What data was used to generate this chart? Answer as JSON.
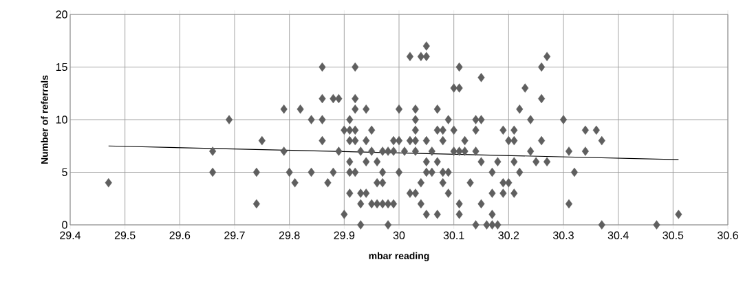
{
  "chart_data": {
    "type": "scatter",
    "xlabel": "mbar reading",
    "ylabel": "Number of referrals",
    "xlim": [
      29.4,
      30.6
    ],
    "ylim": [
      0,
      20
    ],
    "xticks": [
      29.4,
      29.5,
      29.6,
      29.7,
      29.8,
      29.9,
      30,
      30.1,
      30.2,
      30.3,
      30.4,
      30.5,
      30.6
    ],
    "yticks": [
      0,
      5,
      10,
      15,
      20
    ],
    "grid": true,
    "marker": "diamond",
    "series": [
      {
        "color": "#5f5f5f",
        "x": [
          29.47,
          29.66,
          29.66,
          29.69,
          29.74,
          29.74,
          29.75,
          29.79,
          29.79,
          29.8,
          29.81,
          29.82,
          29.84,
          29.84,
          29.86,
          29.86,
          29.86,
          29.86,
          29.87,
          29.88,
          29.88,
          29.89,
          29.89,
          29.9,
          29.9,
          29.91,
          29.91,
          29.91,
          29.91,
          29.91,
          29.91,
          29.92,
          29.92,
          29.92,
          29.92,
          29.92,
          29.92,
          29.93,
          29.93,
          29.93,
          29.93,
          29.94,
          29.94,
          29.94,
          29.94,
          29.95,
          29.95,
          29.95,
          29.96,
          29.96,
          29.96,
          29.97,
          29.97,
          29.97,
          29.97,
          29.98,
          29.98,
          29.98,
          29.99,
          29.99,
          29.99,
          30.0,
          30.0,
          30.0,
          30.01,
          30.02,
          30.02,
          30.02,
          30.03,
          30.03,
          30.03,
          30.03,
          30.03,
          30.03,
          30.04,
          30.04,
          30.04,
          30.05,
          30.05,
          30.05,
          30.05,
          30.05,
          30.05,
          30.06,
          30.06,
          30.07,
          30.07,
          30.07,
          30.07,
          30.08,
          30.08,
          30.08,
          30.08,
          30.09,
          30.09,
          30.09,
          30.1,
          30.1,
          30.1,
          30.11,
          30.11,
          30.11,
          30.11,
          30.11,
          30.12,
          30.12,
          30.13,
          30.14,
          30.14,
          30.14,
          30.14,
          30.15,
          30.15,
          30.15,
          30.15,
          30.16,
          30.17,
          30.17,
          30.17,
          30.17,
          30.18,
          30.18,
          30.19,
          30.19,
          30.19,
          30.2,
          30.2,
          30.21,
          30.21,
          30.21,
          30.21,
          30.22,
          30.22,
          30.23,
          30.24,
          30.24,
          30.25,
          30.26,
          30.26,
          30.26,
          30.27,
          30.27,
          30.3,
          30.31,
          30.31,
          30.32,
          30.34,
          30.34,
          30.36,
          30.37,
          30.37,
          30.47,
          30.51
        ],
        "values": [
          4,
          7,
          5,
          10,
          5,
          2,
          8,
          11,
          7,
          5,
          4,
          11,
          10,
          5,
          15,
          12,
          10,
          8,
          4,
          12,
          5,
          12,
          7,
          9,
          1,
          10,
          9,
          8,
          6,
          5,
          3,
          15,
          12,
          11,
          9,
          8,
          5,
          7,
          3,
          2,
          0,
          11,
          8,
          6,
          3,
          9,
          7,
          2,
          6,
          4,
          2,
          7,
          5,
          4,
          2,
          7,
          2,
          0,
          8,
          7,
          2,
          11,
          8,
          5,
          7,
          16,
          8,
          3,
          11,
          10,
          9,
          8,
          7,
          3,
          16,
          4,
          2,
          17,
          16,
          8,
          6,
          5,
          1,
          7,
          5,
          11,
          9,
          6,
          1,
          9,
          8,
          5,
          4,
          10,
          5,
          3,
          13,
          9,
          7,
          15,
          13,
          7,
          2,
          1,
          8,
          7,
          4,
          10,
          9,
          7,
          0,
          14,
          10,
          6,
          2,
          0,
          5,
          3,
          1,
          0,
          6,
          0,
          9,
          4,
          3,
          8,
          4,
          9,
          8,
          6,
          3,
          11,
          5,
          13,
          10,
          7,
          6,
          15,
          12,
          8,
          16,
          6,
          10,
          7,
          2,
          5,
          9,
          7,
          9,
          8,
          0,
          0,
          1
        ]
      },
      {
        "type": "line",
        "color": "#000000",
        "marker": "none",
        "x": [
          29.47,
          30.51
        ],
        "values": [
          7.5,
          6.2
        ]
      }
    ]
  }
}
